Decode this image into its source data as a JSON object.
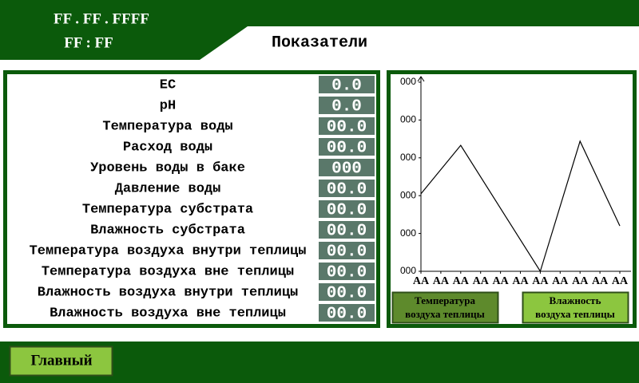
{
  "header": {
    "date": "FF . FF . FFFF",
    "time": "FF : FF",
    "title": "Показатели"
  },
  "readings": [
    {
      "label": "EC",
      "value": "0.0"
    },
    {
      "label": "pH",
      "value": "0.0"
    },
    {
      "label": "Температура воды",
      "value": "00.0"
    },
    {
      "label": "Расход воды",
      "value": "00.0"
    },
    {
      "label": "Уровень воды в баке",
      "value": "000"
    },
    {
      "label": "Давление воды",
      "value": "00.0"
    },
    {
      "label": "Температура субстрата",
      "value": "00.0"
    },
    {
      "label": "Влажность субстрата",
      "value": "00.0"
    },
    {
      "label": "Температура воздуха внутри теплицы",
      "value": "00.0"
    },
    {
      "label": "Температура воздуха вне теплицы",
      "value": "00.0"
    },
    {
      "label": "Влажность воздуха внутри теплицы",
      "value": "00.0"
    },
    {
      "label": "Влажность воздуха вне теплицы",
      "value": "00.0"
    }
  ],
  "chart_data": {
    "type": "line",
    "x": [
      0,
      2,
      6,
      8,
      10
    ],
    "series": [
      {
        "color": "#000000",
        "values": [
          2.05,
          3.33,
          0,
          3.44,
          1.2
        ]
      }
    ],
    "xlim": [
      0,
      10
    ],
    "xticks": [
      {
        "value": 0,
        "label": "AA"
      },
      {
        "value": 1,
        "label": "AA"
      },
      {
        "value": 2,
        "label": "AA"
      },
      {
        "value": 3,
        "label": "AA"
      },
      {
        "value": 4,
        "label": "AA"
      },
      {
        "value": 5,
        "label": "AA"
      },
      {
        "value": 6,
        "label": "AA"
      },
      {
        "value": 7,
        "label": "AA"
      },
      {
        "value": 8,
        "label": "AA"
      },
      {
        "value": 9,
        "label": "AA"
      },
      {
        "value": 10,
        "label": "AA"
      }
    ],
    "ylim": [
      0,
      5
    ],
    "yticks": [
      {
        "value": 0,
        "label": "000"
      },
      {
        "value": 1,
        "label": "000"
      },
      {
        "value": 2,
        "label": "000"
      },
      {
        "value": 3,
        "label": "000"
      },
      {
        "value": 4,
        "label": "000"
      },
      {
        "value": 5,
        "label": "000"
      }
    ]
  },
  "buttons": [
    {
      "lines": [
        "Температура",
        "воздуха теплицы"
      ]
    },
    {
      "lines": [
        "Влажность",
        "воздуха теплицы"
      ]
    }
  ],
  "footer": {
    "button": "Главный"
  }
}
